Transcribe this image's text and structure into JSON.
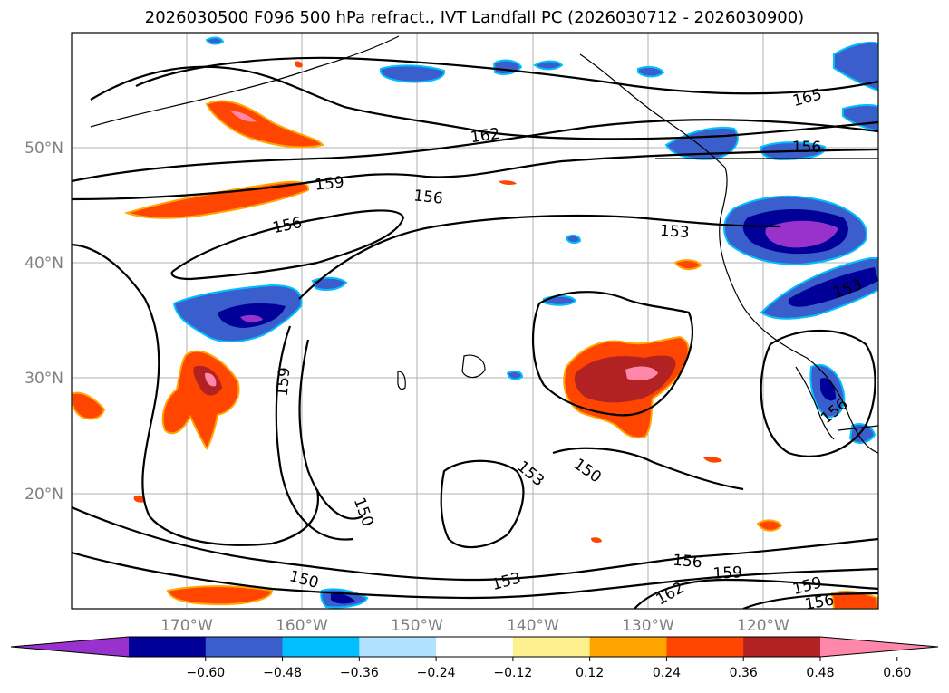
{
  "title": "2026030500 F096 500 hPa refract., IVT Landfall PC (2026030712 - 2026030900)",
  "map": {
    "latitude_labels": [
      "50°N",
      "40°N",
      "30°N",
      "20°N"
    ],
    "longitude_labels": [
      "170°W",
      "160°W",
      "150°W",
      "140°W",
      "130°W",
      "120°W"
    ],
    "contour_labels": [
      "165",
      "162",
      "159",
      "156",
      "156",
      "156",
      "153",
      "153",
      "159",
      "150",
      "153",
      "150",
      "150",
      "153",
      "156",
      "159",
      "162",
      "159",
      "156",
      "156"
    ],
    "fill_palette": {
      "lt_neg_060": "#9932cc",
      "neg_060_048": "#000099",
      "neg_048_036": "#3a5fcd",
      "neg_036_024": "#00bfff",
      "neg_024_012": "#b0e2ff",
      "neg_012_012": "#ffffff",
      "pos_012_024": "#fff08f",
      "pos_024_036": "#ffa500",
      "pos_036_048": "#ff4500",
      "pos_048_060": "#b22222",
      "gt_060": "#ff88aa"
    }
  },
  "colorbar": {
    "ticks": [
      "−0.60",
      "−0.48",
      "−0.36",
      "−0.24",
      "−0.12",
      "0.12",
      "0.24",
      "0.36",
      "0.48",
      "0.60"
    ],
    "colors": [
      "#9932cc",
      "#000099",
      "#3a5fcd",
      "#00bfff",
      "#b0e2ff",
      "#ffffff",
      "#fff08f",
      "#ffa500",
      "#ff4500",
      "#b22222",
      "#ff88aa"
    ]
  }
}
